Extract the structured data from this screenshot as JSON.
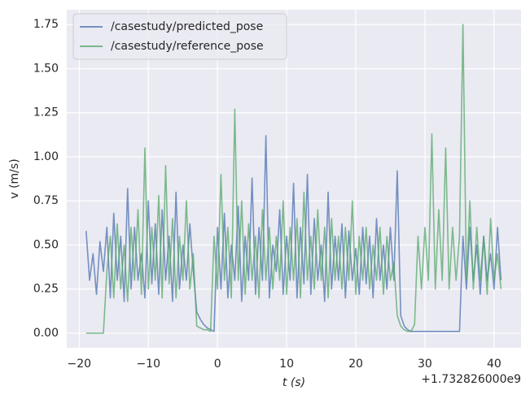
{
  "chart_data": {
    "type": "line",
    "xlabel": "t (s)",
    "ylabel": "v (m/s)",
    "x_offset_label": "+1.732826000e9",
    "xlim": [
      -21.8,
      43.9
    ],
    "ylim": [
      -0.083,
      1.834
    ],
    "xticks": [
      {
        "value": -20,
        "label": "−20"
      },
      {
        "value": -10,
        "label": "−10"
      },
      0,
      10,
      20,
      30,
      40
    ],
    "yticks": [
      {
        "value": 0,
        "label": "0.00"
      },
      {
        "value": 0.25,
        "label": "0.25"
      },
      {
        "value": 0.5,
        "label": "0.50"
      },
      {
        "value": 0.75,
        "label": "0.75"
      },
      {
        "value": 1,
        "label": "1.00"
      },
      {
        "value": 1.25,
        "label": "1.25"
      },
      {
        "value": 1.5,
        "label": "1.50"
      },
      {
        "value": 1.75,
        "label": "1.75"
      }
    ],
    "grid": true,
    "legend": "upper left",
    "x": [
      -19,
      -18.5,
      -18,
      -17.5,
      -17,
      -16.5,
      -16,
      -15.5,
      -15,
      -14.5,
      -14,
      -13.5,
      -13,
      -12.5,
      -12,
      -11.5,
      -11,
      -10.5,
      -10,
      -9.5,
      -9,
      -8.5,
      -8,
      -7.5,
      -7,
      -6.5,
      -6,
      -5.5,
      -5,
      -4.5,
      -4,
      -3.5,
      -3,
      -2.5,
      -2,
      -1.5,
      -1,
      -0.5,
      0,
      0.5,
      1,
      1.5,
      2,
      2.5,
      3,
      3.5,
      4,
      4.5,
      5,
      5.5,
      6,
      6.5,
      7,
      7.5,
      8,
      8.5,
      9,
      9.5,
      10,
      10.5,
      11,
      11.5,
      12,
      12.5,
      13,
      13.5,
      14,
      14.5,
      15,
      15.5,
      16,
      16.5,
      17,
      17.5,
      18,
      18.5,
      19,
      19.5,
      20,
      20.5,
      21,
      21.5,
      22,
      22.5,
      23,
      23.5,
      24,
      24.5,
      25,
      25.5,
      26,
      26.5,
      27,
      27.5,
      28,
      28.5,
      29,
      29.5,
      30,
      30.5,
      31,
      31.5,
      32,
      32.5,
      33,
      33.5,
      34,
      34.5,
      35,
      35.5,
      36,
      36.5,
      37,
      37.5,
      38,
      38.5,
      39,
      39.5,
      40,
      40.5,
      41
    ],
    "series": [
      {
        "name": "/casestudy/predicted_pose",
        "color": "#4c72b0",
        "values": [
          0.58,
          0.3,
          0.45,
          0.22,
          0.52,
          0.35,
          0.6,
          0.2,
          0.68,
          0.3,
          0.55,
          0.18,
          0.82,
          0.25,
          0.6,
          0.3,
          0.45,
          0.2,
          0.75,
          0.28,
          0.62,
          0.22,
          0.7,
          0.3,
          0.55,
          0.18,
          0.8,
          0.25,
          0.5,
          0.3,
          0.62,
          0.35,
          0.12,
          0.08,
          0.05,
          0.03,
          0.02,
          0.01,
          0.6,
          0.25,
          0.68,
          0.2,
          0.5,
          0.3,
          0.72,
          0.18,
          0.55,
          0.3,
          0.88,
          0.22,
          0.6,
          0.3,
          1.12,
          0.2,
          0.5,
          0.35,
          0.7,
          0.22,
          0.55,
          0.3,
          0.85,
          0.2,
          0.6,
          0.28,
          0.9,
          0.22,
          0.65,
          0.3,
          0.5,
          0.18,
          0.8,
          0.25,
          0.55,
          0.3,
          0.62,
          0.2,
          0.58,
          0.3,
          0.48,
          0.22,
          0.6,
          0.28,
          0.55,
          0.2,
          0.65,
          0.3,
          0.5,
          0.25,
          0.6,
          0.3,
          0.92,
          0.1,
          0.04,
          0.02,
          0.01,
          0.01,
          0.01,
          0.01,
          0.01,
          0.01,
          0.01,
          0.01,
          0.01,
          0.01,
          0.01,
          0.01,
          0.01,
          0.01,
          0.01,
          0.55,
          0.25,
          0.6,
          0.3,
          0.5,
          0.22,
          0.55,
          0.3,
          0.45,
          0.25,
          0.6,
          0.3
        ]
      },
      {
        "name": "/casestudy/reference_pose",
        "color": "#55a868",
        "values": [
          0,
          0,
          0,
          0,
          0,
          0,
          0.35,
          0.55,
          0.2,
          0.62,
          0.25,
          0.5,
          0.18,
          0.6,
          0.3,
          0.7,
          0.22,
          1.05,
          0.25,
          0.6,
          0.3,
          0.78,
          0.2,
          0.95,
          0.28,
          0.65,
          0.2,
          0.55,
          0.3,
          0.75,
          0.25,
          0.45,
          0.04,
          0.03,
          0.02,
          0.02,
          0.01,
          0.55,
          0.25,
          0.9,
          0.3,
          0.6,
          0.2,
          1.27,
          0.3,
          0.75,
          0.22,
          0.62,
          0.3,
          0.55,
          0.2,
          0.7,
          0.3,
          0.6,
          0.25,
          0.55,
          0.3,
          0.75,
          0.22,
          0.6,
          0.3,
          0.65,
          0.2,
          0.8,
          0.3,
          0.55,
          0.25,
          0.7,
          0.3,
          0.6,
          0.2,
          0.65,
          0.3,
          0.55,
          0.25,
          0.6,
          0.3,
          0.75,
          0.22,
          0.55,
          0.3,
          0.6,
          0.25,
          0.5,
          0.3,
          0.6,
          0.22,
          0.55,
          0.3,
          0.4,
          0.1,
          0.04,
          0.02,
          0.01,
          0.01,
          0.05,
          0.55,
          0.25,
          0.6,
          0.3,
          1.13,
          0.25,
          0.7,
          0.3,
          1.05,
          0.25,
          0.6,
          0.3,
          0.55,
          1.75,
          0.3,
          0.75,
          0.25,
          0.6,
          0.3,
          0.55,
          0.22,
          0.65,
          0.3,
          0.45,
          0.25
        ]
      }
    ]
  }
}
